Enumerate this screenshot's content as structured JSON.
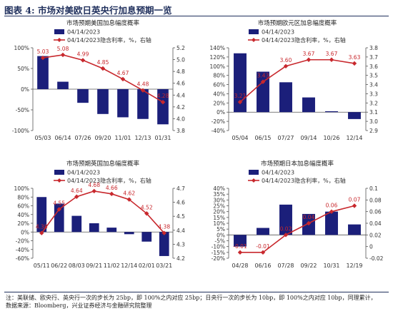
{
  "header": {
    "title": "图表 4:  市场对美欧日英央行加息预期一览"
  },
  "footer": {
    "note": "注：美联储、欧央行、英央行一次的步长为 25bp，即 100%之内对应 25bp；日央行一次的步长为 10bp，即 100%之内对应 10bp，同理累计，",
    "source": "数据来源：Bloomberg，兴业证券经济与金融研究院整理"
  },
  "colors": {
    "bar": "#1b1f7a",
    "line": "#c8282d",
    "axis": "#555555",
    "grid": "#d0d0d0",
    "header": "#1f2f5c"
  },
  "chart_data": [
    {
      "id": "us",
      "type": "bar",
      "title": "市场预期美国加息幅度概率",
      "legend": {
        "bar": "04/14/2023",
        "line": "04/14/2023隐含利率，%，右轴"
      },
      "categories": [
        "05/03",
        "06/14",
        "07/26",
        "09/20",
        "11/01",
        "12/13",
        "01/31"
      ],
      "values": [
        80,
        18,
        -33,
        -60,
        -68,
        -72,
        -85
      ],
      "line_values": [
        5.03,
        5.08,
        4.99,
        4.85,
        4.67,
        4.48,
        4.28
      ],
      "ylim": [
        -100,
        100
      ],
      "y_ticks": [
        -100,
        -50,
        0,
        50,
        100
      ],
      "y_tick_labels": [
        "-100%",
        "-50%",
        "0%",
        "50%",
        "100%"
      ],
      "y2lim": [
        3.8,
        5.2
      ],
      "y2_ticks": [
        3.8,
        4.0,
        4.2,
        4.4,
        4.6,
        4.8,
        5.0,
        5.2
      ],
      "y2_tick_labels": [
        "3.8",
        "4.0",
        "4.2",
        "4.4",
        "4.6",
        "4.8",
        "5.0",
        "5.2"
      ],
      "data_labels": [
        "5.03",
        "5.08",
        "4.99",
        "4.85",
        "4.67",
        "4.48",
        "4.28"
      ]
    },
    {
      "id": "eu",
      "type": "bar",
      "title": "市场预期欧元区加息幅度概率",
      "legend": {
        "bar": "04/14/2023",
        "line": "04/14/2023隐含利率，%，右轴"
      },
      "categories": [
        "05/04",
        "06/15",
        "07/27",
        "09/14",
        "10/26",
        "12/14"
      ],
      "values": [
        128,
        88,
        65,
        32,
        2,
        -15
      ],
      "line_values": [
        3.21,
        3.43,
        3.6,
        3.67,
        3.67,
        3.63
      ],
      "ylim": [
        -40,
        140
      ],
      "y_ticks": [
        -40,
        -20,
        0,
        20,
        40,
        60,
        80,
        100,
        120,
        140
      ],
      "y_tick_labels": [
        "-40%",
        "-20%",
        "0%",
        "20%",
        "40%",
        "60%",
        "80%",
        "100%",
        "120%",
        "140%"
      ],
      "y2lim": [
        2.9,
        3.8
      ],
      "y2_ticks": [
        2.9,
        3.0,
        3.1,
        3.2,
        3.3,
        3.4,
        3.5,
        3.6,
        3.7,
        3.8
      ],
      "y2_tick_labels": [
        "2.9",
        "3.0",
        "3.1",
        "3.2",
        "3.3",
        "3.4",
        "3.5",
        "3.6",
        "3.7",
        "3.8"
      ],
      "data_labels": [
        "3.21",
        "3.43",
        "3.60",
        "3.67",
        "3.67",
        "3.63"
      ]
    },
    {
      "id": "uk",
      "type": "bar",
      "title": "市场预期英国加息幅度概率",
      "legend": {
        "bar": "04/14/2023",
        "line": "04/14/2023隐含利率，%，右轴"
      },
      "categories": [
        "05/11",
        "06/22",
        "08/03",
        "09/21",
        "11/02",
        "12/14",
        "02/01",
        "03/21"
      ],
      "values": [
        80,
        65,
        37,
        20,
        10,
        -5,
        -22,
        -55
      ],
      "line_values": [
        4.38,
        4.55,
        4.64,
        4.68,
        4.66,
        4.62,
        4.52,
        4.38
      ],
      "ylim": [
        -60,
        100
      ],
      "y_ticks": [
        -60,
        -40,
        -20,
        0,
        20,
        40,
        60,
        80,
        100
      ],
      "y_tick_labels": [
        "-60%",
        "-40%",
        "-20%",
        "0%",
        "20%",
        "40%",
        "60%",
        "80%",
        "100%"
      ],
      "y2lim": [
        4.2,
        4.7
      ],
      "y2_ticks": [
        4.2,
        4.3,
        4.4,
        4.5,
        4.6,
        4.7
      ],
      "y2_tick_labels": [
        "4.2",
        "4.3",
        "4.4",
        "4.5",
        "4.6",
        "4.7"
      ],
      "data_labels": [
        "4.38",
        "4.55",
        "4.64",
        "4.68",
        "4.66",
        "4.62",
        "4.52",
        "4.38"
      ]
    },
    {
      "id": "jp",
      "type": "bar",
      "title": "市场预期日本加息幅度概率",
      "legend": {
        "bar": "04/14/2023",
        "line": "04/14/2023隐含利率，%，右轴"
      },
      "categories": [
        "04/28",
        "06/16",
        "07/28",
        "09/22",
        "10/31",
        "12/19"
      ],
      "values": [
        -10,
        6,
        26,
        18,
        20,
        9
      ],
      "line_values": [
        -0.01,
        -0.01,
        0.02,
        0.04,
        0.06,
        0.07
      ],
      "ylim": [
        -20,
        40
      ],
      "y_ticks": [
        -20,
        -15,
        -10,
        -5,
        0,
        5,
        10,
        15,
        20,
        25,
        30,
        35,
        40
      ],
      "y_tick_labels": [
        "-20%",
        "-15%",
        "-10%",
        "-5%",
        "0%",
        "5%",
        "10%",
        "15%",
        "20%",
        "25%",
        "30%",
        "35%",
        "40%"
      ],
      "y2lim": [
        -0.02,
        0.1
      ],
      "y2_ticks": [
        -0.02,
        0,
        0.02,
        0.04,
        0.06,
        0.08,
        0.1
      ],
      "y2_tick_labels": [
        "-0.02",
        "0",
        "0.02",
        "0.04",
        "0.06",
        "0.08",
        "0.1"
      ],
      "data_labels": [
        "-0.01",
        "-0.01",
        "0.02",
        "0.04",
        "0.06",
        "0.07"
      ]
    }
  ]
}
